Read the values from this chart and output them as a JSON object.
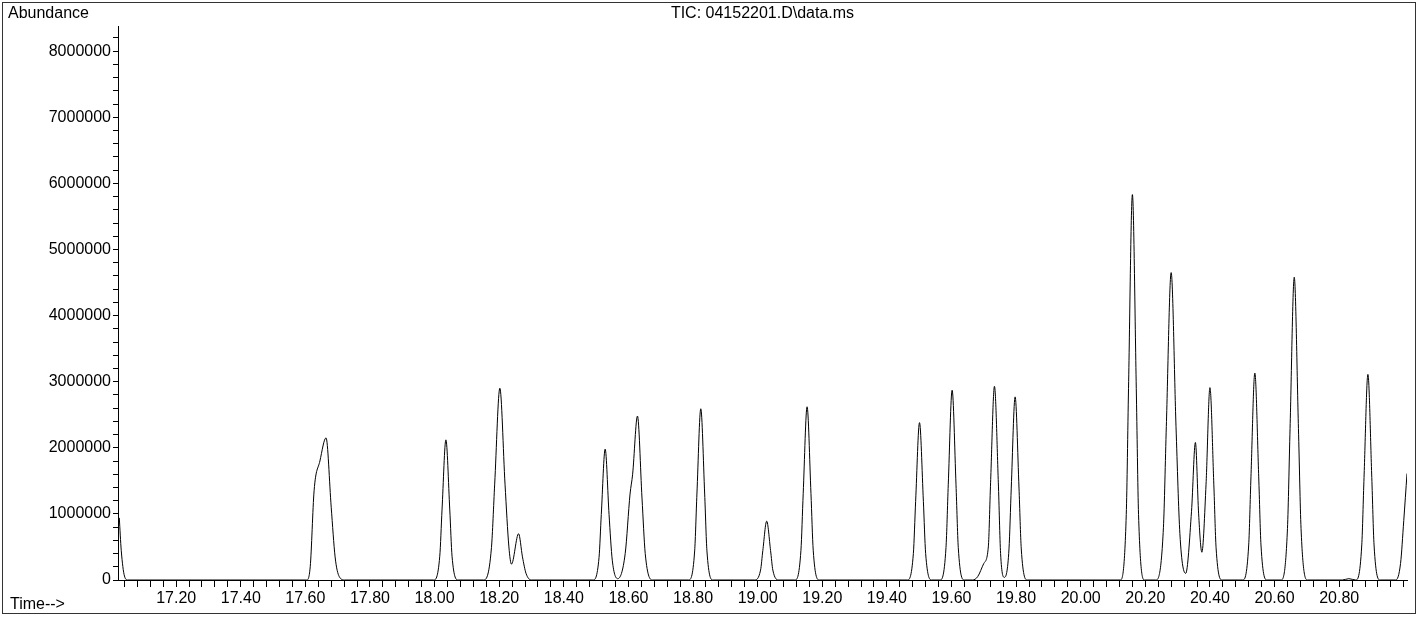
{
  "chart_data": {
    "type": "line",
    "title": "TIC: 04152201.D\\data.ms",
    "xlabel": "Time-->",
    "ylabel": "Abundance",
    "series": [
      {
        "color": "#000000",
        "x": [
          17.024,
          17.03,
          17.04,
          17.05,
          17.604,
          17.615,
          17.627,
          17.645,
          17.664,
          17.68,
          17.692,
          17.705,
          17.722,
          17.997,
          18.016,
          18.023,
          18.035,
          18.047,
          18.054,
          18.073,
          18.151,
          18.176,
          18.186,
          18.202,
          18.218,
          18.23,
          18.238,
          18.26,
          18.272,
          18.283,
          18.3,
          18.49,
          18.509,
          18.516,
          18.528,
          18.54,
          18.55,
          18.567,
          18.59,
          18.605,
          18.613,
          18.628,
          18.642,
          18.652,
          18.675,
          18.786,
          18.805,
          18.812,
          18.824,
          18.836,
          18.843,
          18.862,
          18.99,
          19.009,
          19.016,
          19.028,
          19.04,
          19.047,
          19.066,
          19.115,
          19.134,
          19.141,
          19.153,
          19.165,
          19.172,
          19.191,
          19.463,
          19.482,
          19.489,
          19.501,
          19.513,
          19.52,
          19.539,
          19.564,
          19.583,
          19.59,
          19.602,
          19.614,
          19.621,
          19.64,
          19.665,
          19.681,
          19.7,
          19.714,
          19.721,
          19.733,
          19.745,
          19.752,
          19.764,
          19.778,
          19.785,
          19.797,
          19.809,
          19.816,
          19.835,
          20.122,
          20.141,
          20.148,
          20.16,
          20.172,
          20.179,
          20.198,
          20.232,
          20.256,
          20.265,
          20.28,
          20.295,
          20.307,
          20.325,
          20.343,
          20.355,
          20.365,
          20.375,
          20.388,
          20.4,
          20.412,
          20.419,
          20.438,
          20.501,
          20.52,
          20.527,
          20.539,
          20.551,
          20.558,
          20.577,
          20.62,
          20.64,
          20.648,
          20.661,
          20.674,
          20.682,
          20.702,
          20.81,
          20.83,
          20.851,
          20.87,
          20.877,
          20.889,
          20.901,
          20.908,
          20.927,
          20.975,
          20.99,
          21.0,
          21.01
        ],
        "values": [
          940000,
          450000,
          60000,
          0,
          0,
          200000,
          1350000,
          1800000,
          2150000,
          1100000,
          350000,
          50000,
          0,
          0,
          360000,
          1060000,
          2120000,
          1060000,
          360000,
          0,
          0,
          490000,
          1450000,
          2900000,
          1450000,
          500000,
          240000,
          700000,
          350000,
          100000,
          0,
          0,
          340000,
          990000,
          1980000,
          990000,
          300000,
          20000,
          400000,
          1300000,
          1600000,
          2480000,
          1240000,
          400000,
          0,
          0,
          440000,
          1300000,
          2590000,
          1300000,
          440000,
          0,
          0,
          150000,
          445000,
          890000,
          445000,
          150000,
          0,
          0,
          450000,
          1310000,
          2620000,
          1310000,
          450000,
          0,
          0,
          400000,
          1190000,
          2380000,
          1190000,
          400000,
          0,
          0,
          490000,
          1440000,
          2870000,
          1440000,
          490000,
          0,
          0,
          50000,
          250000,
          500000,
          1470000,
          2930000,
          1470000,
          400000,
          40000,
          470000,
          1390000,
          2770000,
          1390000,
          470000,
          0,
          0,
          990000,
          2900000,
          5830000,
          2900000,
          990000,
          0,
          0,
          790000,
          2320000,
          4650000,
          2320000,
          700000,
          100000,
          1040000,
          2080000,
          1000000,
          420000,
          1450000,
          2910000,
          1450000,
          490000,
          0,
          0,
          530000,
          1560000,
          3130000,
          1560000,
          530000,
          0,
          0,
          780000,
          2290000,
          4580000,
          2290000,
          780000,
          0,
          0,
          20000,
          0,
          530000,
          1550000,
          3110000,
          1550000,
          530000,
          0,
          0,
          250000,
          900000,
          1610000
        ]
      }
    ],
    "xlim": [
      17.02,
      21.01
    ],
    "xticks": [
      {
        "value": 17.04,
        "label": null
      },
      {
        "value": 17.08,
        "label": null
      },
      {
        "value": 17.12,
        "label": null
      },
      {
        "value": 17.16,
        "label": null
      },
      {
        "value": 17.2,
        "label": "17.20"
      },
      {
        "value": 17.24,
        "label": null
      },
      {
        "value": 17.28,
        "label": null
      },
      {
        "value": 17.32,
        "label": null
      },
      {
        "value": 17.36,
        "label": null
      },
      {
        "value": 17.4,
        "label": "17.40"
      },
      {
        "value": 17.44,
        "label": null
      },
      {
        "value": 17.48,
        "label": null
      },
      {
        "value": 17.52,
        "label": null
      },
      {
        "value": 17.56,
        "label": null
      },
      {
        "value": 17.6,
        "label": "17.60"
      },
      {
        "value": 17.64,
        "label": null
      },
      {
        "value": 17.68,
        "label": null
      },
      {
        "value": 17.72,
        "label": null
      },
      {
        "value": 17.76,
        "label": null
      },
      {
        "value": 17.8,
        "label": "17.80"
      },
      {
        "value": 17.84,
        "label": null
      },
      {
        "value": 17.88,
        "label": null
      },
      {
        "value": 17.92,
        "label": null
      },
      {
        "value": 17.96,
        "label": null
      },
      {
        "value": 18.0,
        "label": "18.00"
      },
      {
        "value": 18.04,
        "label": null
      },
      {
        "value": 18.08,
        "label": null
      },
      {
        "value": 18.12,
        "label": null
      },
      {
        "value": 18.16,
        "label": null
      },
      {
        "value": 18.2,
        "label": "18.20"
      },
      {
        "value": 18.24,
        "label": null
      },
      {
        "value": 18.28,
        "label": null
      },
      {
        "value": 18.32,
        "label": null
      },
      {
        "value": 18.36,
        "label": null
      },
      {
        "value": 18.4,
        "label": "18.40"
      },
      {
        "value": 18.44,
        "label": null
      },
      {
        "value": 18.48,
        "label": null
      },
      {
        "value": 18.52,
        "label": null
      },
      {
        "value": 18.56,
        "label": null
      },
      {
        "value": 18.6,
        "label": "18.60"
      },
      {
        "value": 18.64,
        "label": null
      },
      {
        "value": 18.68,
        "label": null
      },
      {
        "value": 18.72,
        "label": null
      },
      {
        "value": 18.76,
        "label": null
      },
      {
        "value": 18.8,
        "label": "18.80"
      },
      {
        "value": 18.84,
        "label": null
      },
      {
        "value": 18.88,
        "label": null
      },
      {
        "value": 18.92,
        "label": null
      },
      {
        "value": 18.96,
        "label": null
      },
      {
        "value": 19.0,
        "label": "19.00"
      },
      {
        "value": 19.04,
        "label": null
      },
      {
        "value": 19.08,
        "label": null
      },
      {
        "value": 19.12,
        "label": null
      },
      {
        "value": 19.16,
        "label": null
      },
      {
        "value": 19.2,
        "label": "19.20"
      },
      {
        "value": 19.24,
        "label": null
      },
      {
        "value": 19.28,
        "label": null
      },
      {
        "value": 19.32,
        "label": null
      },
      {
        "value": 19.36,
        "label": null
      },
      {
        "value": 19.4,
        "label": "19.40"
      },
      {
        "value": 19.44,
        "label": null
      },
      {
        "value": 19.48,
        "label": null
      },
      {
        "value": 19.52,
        "label": null
      },
      {
        "value": 19.56,
        "label": null
      },
      {
        "value": 19.6,
        "label": "19.60"
      },
      {
        "value": 19.64,
        "label": null
      },
      {
        "value": 19.68,
        "label": null
      },
      {
        "value": 19.72,
        "label": null
      },
      {
        "value": 19.76,
        "label": null
      },
      {
        "value": 19.8,
        "label": "19.80"
      },
      {
        "value": 19.84,
        "label": null
      },
      {
        "value": 19.88,
        "label": null
      },
      {
        "value": 19.92,
        "label": null
      },
      {
        "value": 19.96,
        "label": null
      },
      {
        "value": 20.0,
        "label": "20.00"
      },
      {
        "value": 20.04,
        "label": null
      },
      {
        "value": 20.08,
        "label": null
      },
      {
        "value": 20.12,
        "label": null
      },
      {
        "value": 20.16,
        "label": null
      },
      {
        "value": 20.2,
        "label": "20.20"
      },
      {
        "value": 20.24,
        "label": null
      },
      {
        "value": 20.28,
        "label": null
      },
      {
        "value": 20.32,
        "label": null
      },
      {
        "value": 20.36,
        "label": null
      },
      {
        "value": 20.4,
        "label": "20.40"
      },
      {
        "value": 20.44,
        "label": null
      },
      {
        "value": 20.48,
        "label": null
      },
      {
        "value": 20.52,
        "label": null
      },
      {
        "value": 20.56,
        "label": null
      },
      {
        "value": 20.6,
        "label": "20.60"
      },
      {
        "value": 20.64,
        "label": null
      },
      {
        "value": 20.68,
        "label": null
      },
      {
        "value": 20.72,
        "label": null
      },
      {
        "value": 20.76,
        "label": null
      },
      {
        "value": 20.8,
        "label": "20.80"
      },
      {
        "value": 20.84,
        "label": null
      },
      {
        "value": 20.88,
        "label": null
      },
      {
        "value": 20.92,
        "label": null
      },
      {
        "value": 20.96,
        "label": null
      },
      {
        "value": 21.0,
        "label": null
      }
    ],
    "ylim": [
      0,
      8380000
    ],
    "yticks": [
      0,
      {
        "value": 200000,
        "label": null
      },
      {
        "value": 400000,
        "label": null
      },
      {
        "value": 600000,
        "label": null
      },
      {
        "value": 800000,
        "label": null
      },
      1000000,
      {
        "value": 1200000,
        "label": null
      },
      {
        "value": 1400000,
        "label": null
      },
      {
        "value": 1600000,
        "label": null
      },
      {
        "value": 1800000,
        "label": null
      },
      2000000,
      {
        "value": 2200000,
        "label": null
      },
      {
        "value": 2400000,
        "label": null
      },
      {
        "value": 2600000,
        "label": null
      },
      {
        "value": 2800000,
        "label": null
      },
      3000000,
      {
        "value": 3200000,
        "label": null
      },
      {
        "value": 3400000,
        "label": null
      },
      {
        "value": 3600000,
        "label": null
      },
      {
        "value": 3800000,
        "label": null
      },
      4000000,
      {
        "value": 4200000,
        "label": null
      },
      {
        "value": 4400000,
        "label": null
      },
      {
        "value": 4600000,
        "label": null
      },
      {
        "value": 4800000,
        "label": null
      },
      5000000,
      {
        "value": 5200000,
        "label": null
      },
      {
        "value": 5400000,
        "label": null
      },
      {
        "value": 5600000,
        "label": null
      },
      {
        "value": 5800000,
        "label": null
      },
      6000000,
      {
        "value": 6200000,
        "label": null
      },
      {
        "value": 6400000,
        "label": null
      },
      {
        "value": 6600000,
        "label": null
      },
      {
        "value": 6800000,
        "label": null
      },
      7000000,
      {
        "value": 7200000,
        "label": null
      },
      {
        "value": 7400000,
        "label": null
      },
      {
        "value": 7600000,
        "label": null
      },
      {
        "value": 7800000,
        "label": null
      },
      8000000,
      {
        "value": 8200000,
        "label": null
      }
    ],
    "grid": false,
    "legend": false,
    "marker": "none",
    "line_style": "solid"
  }
}
